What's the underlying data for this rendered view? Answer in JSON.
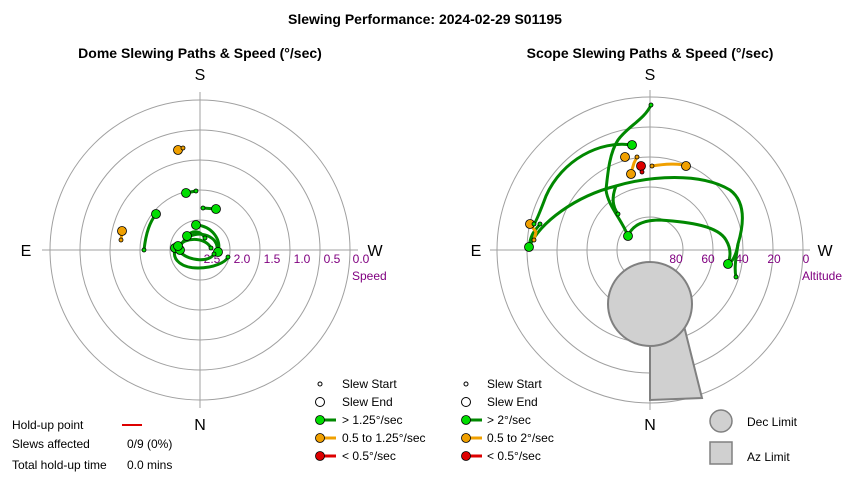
{
  "title": "Slewing Performance: 2024-02-29 S01195",
  "colors": {
    "ring": "#a0a0a0",
    "axis": "#a0a0a0",
    "fast": "#00dd00",
    "fast_line": "#008800",
    "mid": "#f0a000",
    "slow": "#dd0000",
    "tick": "#800080",
    "limit_fill": "#d0d0d0",
    "limit_stroke": "#808080"
  },
  "dome": {
    "title": "Dome Slewing Paths & Speed (°/sec)",
    "directions": {
      "north": "N",
      "south": "S",
      "east": "E",
      "west": "W"
    },
    "axis_label": "Speed",
    "ticks": [
      "2.5",
      "2.0",
      "1.5",
      "1.0",
      "0.5",
      "0.0"
    ],
    "legend": {
      "start": "Slew Start",
      "end": "Slew End",
      "fast": "> 1.25°/sec",
      "mid": "0.5 to 1.25°/sec",
      "slow": "< 0.5°/sec"
    }
  },
  "scope": {
    "title": "Scope Slewing Paths & Speed (°/sec)",
    "directions": {
      "north": "N",
      "south": "S",
      "east": "E",
      "west": "W"
    },
    "axis_label": "Altitude",
    "ticks": [
      "80",
      "60",
      "40",
      "20",
      "0"
    ],
    "legend": {
      "start": "Slew Start",
      "end": "Slew End",
      "fast": "> 2°/sec",
      "mid": "0.5 to 2°/sec",
      "slow": "< 0.5°/sec"
    },
    "limits": {
      "dec": "Dec Limit",
      "az": "Az Limit"
    }
  },
  "holdup": {
    "point_label": "Hold-up point",
    "affected_label": "Slews affected",
    "affected_value": "0/9 (0%)",
    "total_label": "Total hold-up time",
    "total_value": "0.0 mins"
  },
  "chart_data": [
    {
      "type": "scatter",
      "title": "Dome Slewing Paths & Speed (°/sec)",
      "axis": "radial speed",
      "rlim": [
        0.0,
        2.5
      ],
      "series": [
        {
          "name": "> 1.25°/sec",
          "segments": 9
        },
        {
          "name": "0.5 to 1.25°/sec",
          "segments": 2
        },
        {
          "name": "< 0.5°/sec",
          "segments": 0
        }
      ]
    },
    {
      "type": "scatter",
      "title": "Scope Slewing Paths & Speed (°/sec)",
      "axis": "radial altitude",
      "rlim": [
        0,
        90
      ],
      "series": [
        {
          "name": "> 2°/sec",
          "segments": 7
        },
        {
          "name": "0.5 to 2°/sec",
          "segments": 3
        },
        {
          "name": "< 0.5°/sec",
          "segments": 1
        }
      ]
    }
  ]
}
